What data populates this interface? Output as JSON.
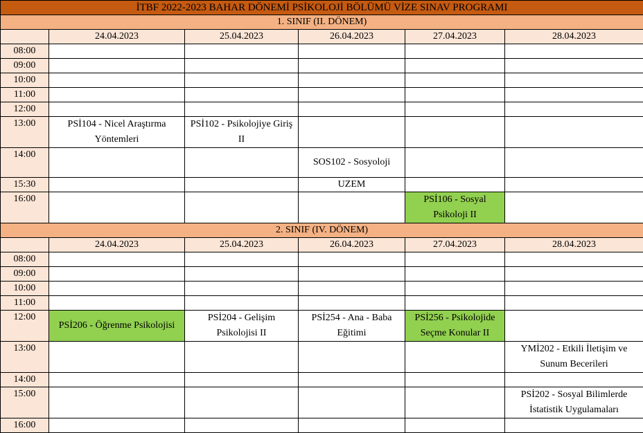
{
  "title": "İTBF 2022-2023 BAHAR DÖNEMİ PSİKOLOJİ BÖLÜMÜ VİZE SINAV PROGRAMI",
  "colors": {
    "title_bg": "#c55a11",
    "section_bg": "#f4b183",
    "header_bg": "#fbe5d6",
    "highlight": "#92d050"
  },
  "sections": [
    {
      "label": "1. SINIF (II. DÖNEM)",
      "dates": [
        "24.04.2023",
        "25.04.2023",
        "26.04.2023",
        "27.04.2023",
        "28.04.2023"
      ],
      "rows": [
        {
          "time": "08:00",
          "cells": [
            "",
            "",
            "",
            "",
            ""
          ]
        },
        {
          "time": "09:00",
          "cells": [
            "",
            "",
            "",
            "",
            ""
          ]
        },
        {
          "time": "10:00",
          "cells": [
            "",
            "",
            "",
            "",
            ""
          ]
        },
        {
          "time": "11:00",
          "cells": [
            "",
            "",
            "",
            "",
            ""
          ]
        },
        {
          "time": "12:00",
          "cells": [
            "",
            "",
            "",
            "",
            ""
          ]
        },
        {
          "time": "13:00",
          "cells": [
            "PSİ104 - Nicel Araştırma Yöntemleri",
            "PSİ102 - Psikolojiye Giriş II",
            "",
            "",
            ""
          ]
        },
        {
          "time": "14:00",
          "cells": [
            "",
            "",
            "SOS102 - Sosyoloji",
            "",
            ""
          ]
        },
        {
          "time": "15:30",
          "cells": [
            "",
            "",
            "UZEM",
            "",
            ""
          ]
        },
        {
          "time": "16:00",
          "cells": [
            "",
            "",
            "",
            "PSİ106 - Sosyal Psikoloji II",
            ""
          ],
          "highlight": [
            3
          ]
        }
      ]
    },
    {
      "label": "2. SINIF (IV. DÖNEM)",
      "dates": [
        "24.04.2023",
        "25.04.2023",
        "26.04.2023",
        "27.04.2023",
        "28.04.2023"
      ],
      "rows": [
        {
          "time": "08:00",
          "cells": [
            "",
            "",
            "",
            "",
            ""
          ]
        },
        {
          "time": "09:00",
          "cells": [
            "",
            "",
            "",
            "",
            ""
          ]
        },
        {
          "time": "10:00",
          "cells": [
            "",
            "",
            "",
            "",
            ""
          ]
        },
        {
          "time": "11:00",
          "cells": [
            "",
            "",
            "",
            "",
            ""
          ]
        },
        {
          "time": "12:00",
          "cells": [
            "PSİ206 - Öğrenme Psikolojisi",
            "PSİ204 - Gelişim Psikolojisi II",
            "PSİ254 - Ana - Baba Eğitimi",
            "PSİ256 - Psikolojide Seçme Konular II",
            ""
          ],
          "highlight": [
            0,
            3
          ]
        },
        {
          "time": "13:00",
          "cells": [
            "",
            "",
            "",
            "",
            "YMİ202 - Etkili İletişim ve Sunum Becerileri"
          ]
        },
        {
          "time": "14:00",
          "cells": [
            "",
            "",
            "",
            "",
            ""
          ]
        },
        {
          "time": "15:00",
          "cells": [
            "",
            "",
            "",
            "",
            "PSİ202 - Sosyal Bilimlerde İstatistik Uygulamaları"
          ]
        },
        {
          "time": "16:00",
          "cells": [
            "",
            "",
            "",
            "",
            ""
          ]
        }
      ]
    }
  ]
}
